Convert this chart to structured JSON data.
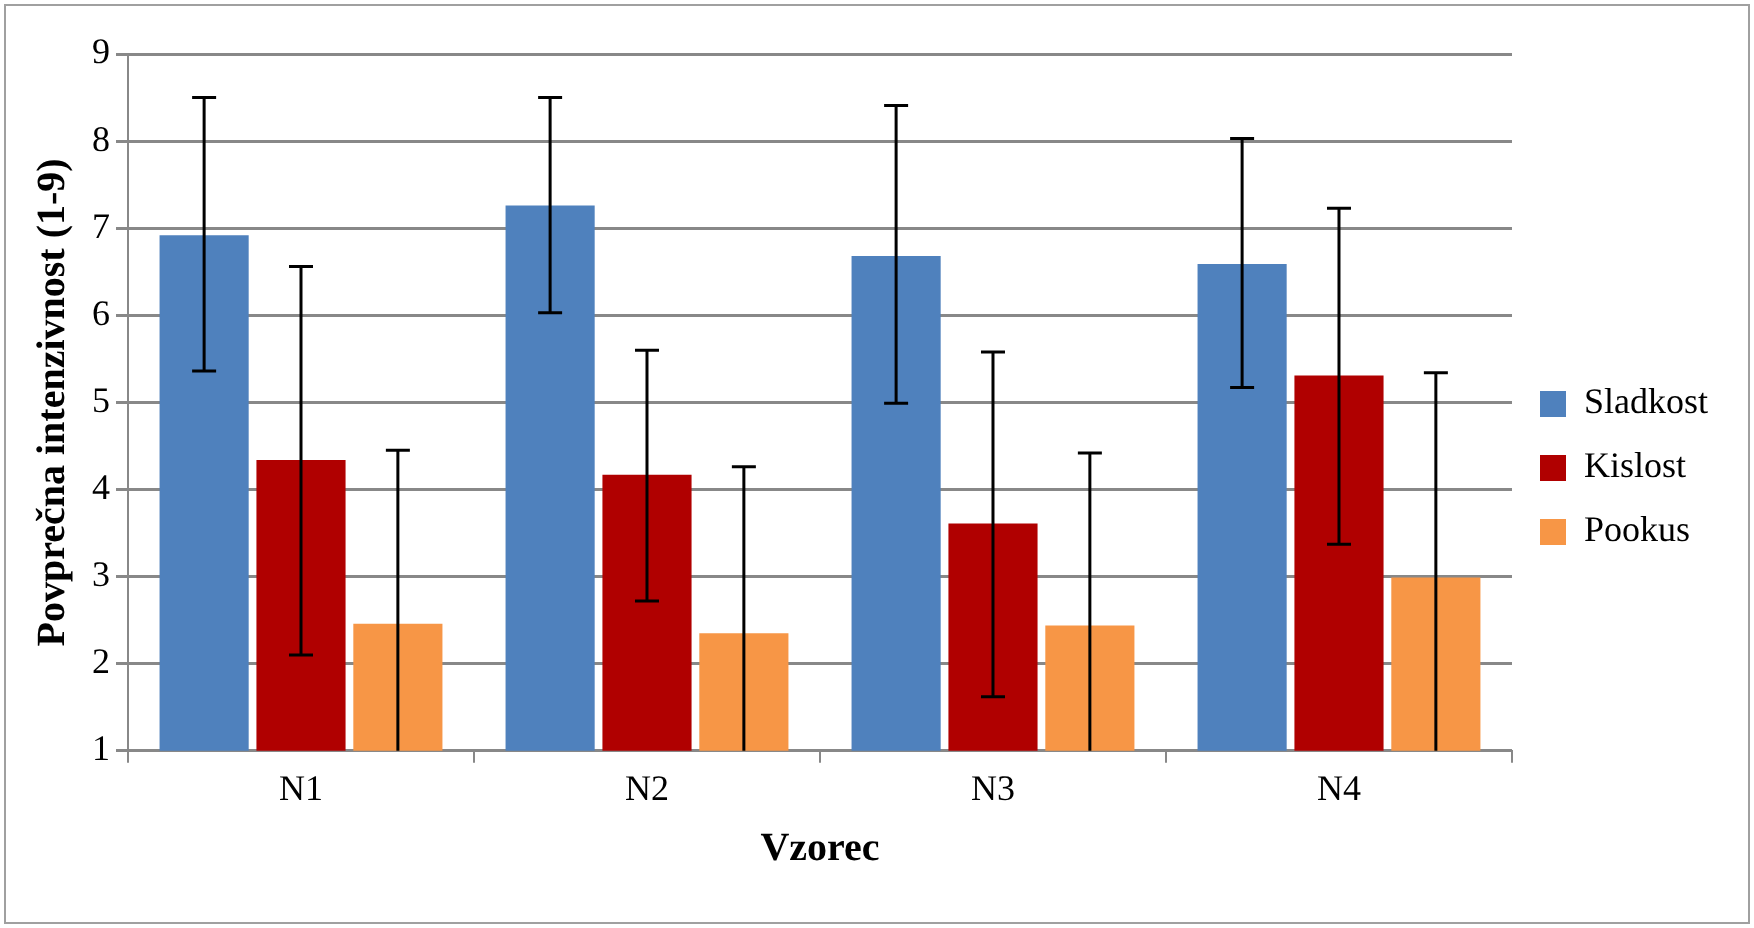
{
  "chart_data": {
    "type": "bar",
    "xlabel": "Vzorec",
    "ylabel": "Povprečna intenzivnost (1-9)",
    "categories": [
      "N1",
      "N2",
      "N3",
      "N4"
    ],
    "series": [
      {
        "name": "Sladkost",
        "color": "#4f81bd",
        "values": [
          6.92,
          7.26,
          6.68,
          6.59
        ],
        "errors": [
          [
            5.36,
            8.5
          ],
          [
            6.03,
            8.5
          ],
          [
            4.99,
            8.41
          ],
          [
            5.17,
            8.03
          ]
        ]
      },
      {
        "name": "Kislost",
        "color": "#b00000",
        "values": [
          4.34,
          4.17,
          3.61,
          5.31
        ],
        "errors": [
          [
            2.1,
            6.56
          ],
          [
            2.72,
            5.6
          ],
          [
            1.62,
            5.58
          ],
          [
            3.37,
            7.23
          ]
        ]
      },
      {
        "name": "Pookus",
        "color": "#f79646",
        "values": [
          2.46,
          2.35,
          2.44,
          2.99
        ],
        "errors": [
          [
            1,
            4.45
          ],
          [
            1,
            4.26
          ],
          [
            1,
            4.42
          ],
          [
            1,
            5.34
          ]
        ]
      }
    ],
    "ylim": [
      1,
      9
    ],
    "yticks": [
      1,
      2,
      3,
      4,
      5,
      6,
      7,
      8,
      9
    ],
    "grid": "y",
    "legend": "right"
  }
}
